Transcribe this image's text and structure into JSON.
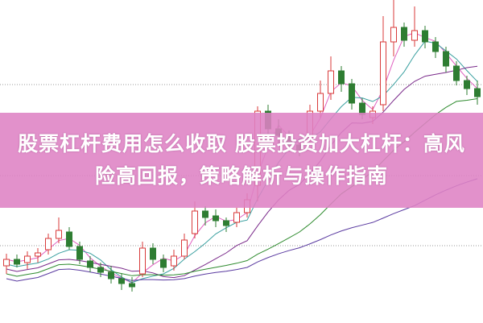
{
  "title": "股票杠杆费用怎么收取 股票投资加大杠杆：高风险高回报，策略解析与操作指南",
  "colors": {
    "banner": "#de82c4",
    "up": "#d83a3a",
    "down": "#2e7d32",
    "grid": "#999999",
    "ma": [
      "#e060c0",
      "#3aa0a0",
      "#7a2a8a",
      "#2e8b2e",
      "#5a3aa0"
    ]
  },
  "chart_data": {
    "type": "candlestick",
    "title": "",
    "grid": true,
    "candles": [
      [
        70,
        85,
        60,
        78
      ],
      [
        78,
        84,
        68,
        72
      ],
      [
        74,
        88,
        66,
        82
      ],
      [
        82,
        92,
        74,
        86
      ],
      [
        90,
        110,
        84,
        104
      ],
      [
        104,
        130,
        98,
        114
      ],
      [
        112,
        118,
        90,
        94
      ],
      [
        94,
        100,
        72,
        78
      ],
      [
        76,
        82,
        62,
        68
      ],
      [
        68,
        74,
        56,
        62
      ],
      [
        62,
        70,
        48,
        54
      ],
      [
        54,
        60,
        40,
        48
      ],
      [
        48,
        56,
        38,
        44
      ],
      [
        60,
        100,
        56,
        92
      ],
      [
        92,
        98,
        72,
        78
      ],
      [
        78,
        84,
        62,
        68
      ],
      [
        70,
        90,
        64,
        82
      ],
      [
        82,
        110,
        78,
        102
      ],
      [
        110,
        150,
        104,
        138
      ],
      [
        138,
        144,
        120,
        130
      ],
      [
        132,
        140,
        118,
        126
      ],
      [
        126,
        130,
        112,
        120
      ],
      [
        124,
        142,
        118,
        136
      ],
      [
        136,
        160,
        130,
        152
      ],
      [
        170,
        268,
        150,
        262
      ],
      [
        262,
        270,
        232,
        240
      ],
      [
        240,
        252,
        222,
        232
      ],
      [
        232,
        238,
        212,
        220
      ],
      [
        220,
        226,
        206,
        214
      ],
      [
        230,
        270,
        222,
        262
      ],
      [
        262,
        300,
        254,
        284
      ],
      [
        284,
        330,
        276,
        312
      ],
      [
        312,
        318,
        286,
        296
      ],
      [
        296,
        302,
        264,
        272
      ],
      [
        272,
        278,
        252,
        258
      ],
      [
        254,
        268,
        246,
        262
      ],
      [
        270,
        380,
        262,
        348
      ],
      [
        348,
        400,
        330,
        366
      ],
      [
        366,
        372,
        342,
        350
      ],
      [
        350,
        392,
        342,
        362
      ],
      [
        362,
        368,
        340,
        348
      ],
      [
        348,
        354,
        328,
        336
      ],
      [
        336,
        342,
        310,
        318
      ],
      [
        318,
        324,
        294,
        300
      ],
      [
        300,
        306,
        282,
        290
      ],
      [
        290,
        300,
        270,
        280
      ]
    ]
  }
}
